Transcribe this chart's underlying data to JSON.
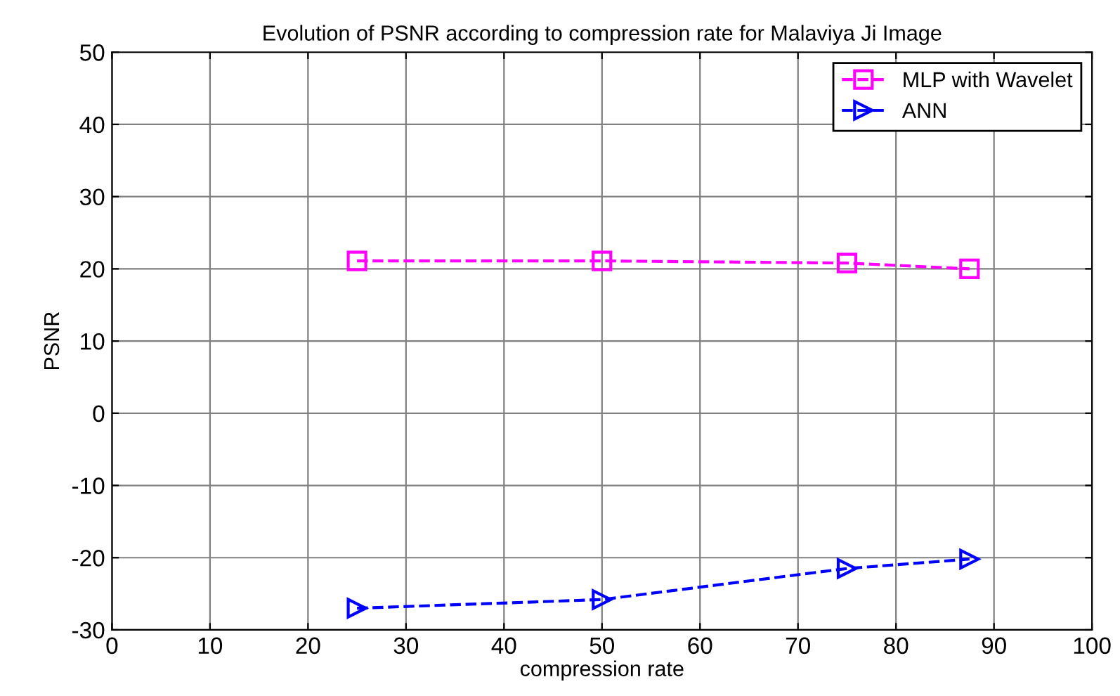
{
  "chart_data": {
    "type": "line",
    "title": "Evolution of PSNR according to compression rate for Malaviya Ji Image",
    "xlabel": "compression rate",
    "ylabel": "PSNR",
    "x": [
      25,
      50,
      75,
      87.5
    ],
    "series": [
      {
        "name": "MLP with Wavelet",
        "color": "#ff00ff",
        "values": [
          21.1,
          21.1,
          20.8,
          20
        ],
        "marker": "square"
      },
      {
        "name": "ANN",
        "color": "#0000ff",
        "values": [
          -27,
          -25.8,
          -21.5,
          -20.2
        ],
        "marker": "triangle"
      }
    ],
    "xlim": [
      0,
      100
    ],
    "xticks": [
      0,
      10,
      20,
      30,
      40,
      50,
      60,
      70,
      80,
      90,
      100
    ],
    "ylim": [
      -30,
      50
    ],
    "yticks": [
      -30,
      -20,
      -10,
      0,
      10,
      20,
      30,
      40,
      50
    ],
    "grid": true,
    "legend": "top right",
    "line_style": "dashed"
  }
}
